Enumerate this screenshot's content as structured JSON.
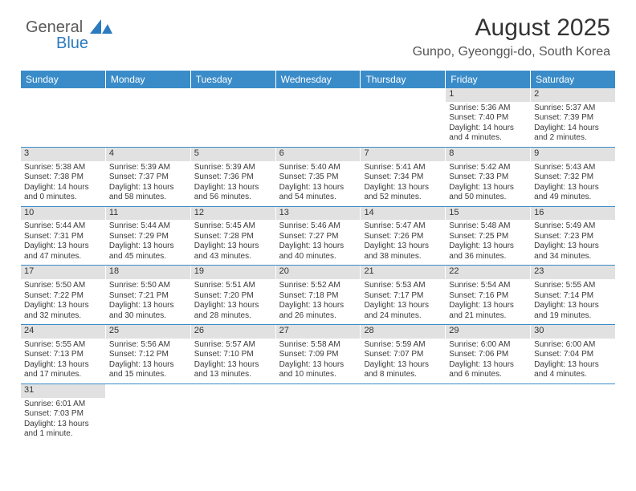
{
  "logo": {
    "word1": "General",
    "word2": "Blue"
  },
  "title": "August 2025",
  "location": "Gunpo, Gyeonggi-do, South Korea",
  "day_names": [
    "Sunday",
    "Monday",
    "Tuesday",
    "Wednesday",
    "Thursday",
    "Friday",
    "Saturday"
  ],
  "colors": {
    "header_bg": "#3a8cc9",
    "header_text": "#ffffff",
    "daynum_bg": "#e1e1e1",
    "week_border": "#3a8cc9",
    "logo_gray": "#5a5a5a",
    "logo_blue": "#2b7bbf"
  },
  "weeks": [
    [
      {
        "empty": true
      },
      {
        "empty": true
      },
      {
        "empty": true
      },
      {
        "empty": true
      },
      {
        "empty": true
      },
      {
        "n": "1",
        "sr": "Sunrise: 5:36 AM",
        "ss": "Sunset: 7:40 PM",
        "dl1": "Daylight: 14 hours",
        "dl2": "and 4 minutes."
      },
      {
        "n": "2",
        "sr": "Sunrise: 5:37 AM",
        "ss": "Sunset: 7:39 PM",
        "dl1": "Daylight: 14 hours",
        "dl2": "and 2 minutes."
      }
    ],
    [
      {
        "n": "3",
        "sr": "Sunrise: 5:38 AM",
        "ss": "Sunset: 7:38 PM",
        "dl1": "Daylight: 14 hours",
        "dl2": "and 0 minutes."
      },
      {
        "n": "4",
        "sr": "Sunrise: 5:39 AM",
        "ss": "Sunset: 7:37 PM",
        "dl1": "Daylight: 13 hours",
        "dl2": "and 58 minutes."
      },
      {
        "n": "5",
        "sr": "Sunrise: 5:39 AM",
        "ss": "Sunset: 7:36 PM",
        "dl1": "Daylight: 13 hours",
        "dl2": "and 56 minutes."
      },
      {
        "n": "6",
        "sr": "Sunrise: 5:40 AM",
        "ss": "Sunset: 7:35 PM",
        "dl1": "Daylight: 13 hours",
        "dl2": "and 54 minutes."
      },
      {
        "n": "7",
        "sr": "Sunrise: 5:41 AM",
        "ss": "Sunset: 7:34 PM",
        "dl1": "Daylight: 13 hours",
        "dl2": "and 52 minutes."
      },
      {
        "n": "8",
        "sr": "Sunrise: 5:42 AM",
        "ss": "Sunset: 7:33 PM",
        "dl1": "Daylight: 13 hours",
        "dl2": "and 50 minutes."
      },
      {
        "n": "9",
        "sr": "Sunrise: 5:43 AM",
        "ss": "Sunset: 7:32 PM",
        "dl1": "Daylight: 13 hours",
        "dl2": "and 49 minutes."
      }
    ],
    [
      {
        "n": "10",
        "sr": "Sunrise: 5:44 AM",
        "ss": "Sunset: 7:31 PM",
        "dl1": "Daylight: 13 hours",
        "dl2": "and 47 minutes."
      },
      {
        "n": "11",
        "sr": "Sunrise: 5:44 AM",
        "ss": "Sunset: 7:29 PM",
        "dl1": "Daylight: 13 hours",
        "dl2": "and 45 minutes."
      },
      {
        "n": "12",
        "sr": "Sunrise: 5:45 AM",
        "ss": "Sunset: 7:28 PM",
        "dl1": "Daylight: 13 hours",
        "dl2": "and 43 minutes."
      },
      {
        "n": "13",
        "sr": "Sunrise: 5:46 AM",
        "ss": "Sunset: 7:27 PM",
        "dl1": "Daylight: 13 hours",
        "dl2": "and 40 minutes."
      },
      {
        "n": "14",
        "sr": "Sunrise: 5:47 AM",
        "ss": "Sunset: 7:26 PM",
        "dl1": "Daylight: 13 hours",
        "dl2": "and 38 minutes."
      },
      {
        "n": "15",
        "sr": "Sunrise: 5:48 AM",
        "ss": "Sunset: 7:25 PM",
        "dl1": "Daylight: 13 hours",
        "dl2": "and 36 minutes."
      },
      {
        "n": "16",
        "sr": "Sunrise: 5:49 AM",
        "ss": "Sunset: 7:23 PM",
        "dl1": "Daylight: 13 hours",
        "dl2": "and 34 minutes."
      }
    ],
    [
      {
        "n": "17",
        "sr": "Sunrise: 5:50 AM",
        "ss": "Sunset: 7:22 PM",
        "dl1": "Daylight: 13 hours",
        "dl2": "and 32 minutes."
      },
      {
        "n": "18",
        "sr": "Sunrise: 5:50 AM",
        "ss": "Sunset: 7:21 PM",
        "dl1": "Daylight: 13 hours",
        "dl2": "and 30 minutes."
      },
      {
        "n": "19",
        "sr": "Sunrise: 5:51 AM",
        "ss": "Sunset: 7:20 PM",
        "dl1": "Daylight: 13 hours",
        "dl2": "and 28 minutes."
      },
      {
        "n": "20",
        "sr": "Sunrise: 5:52 AM",
        "ss": "Sunset: 7:18 PM",
        "dl1": "Daylight: 13 hours",
        "dl2": "and 26 minutes."
      },
      {
        "n": "21",
        "sr": "Sunrise: 5:53 AM",
        "ss": "Sunset: 7:17 PM",
        "dl1": "Daylight: 13 hours",
        "dl2": "and 24 minutes."
      },
      {
        "n": "22",
        "sr": "Sunrise: 5:54 AM",
        "ss": "Sunset: 7:16 PM",
        "dl1": "Daylight: 13 hours",
        "dl2": "and 21 minutes."
      },
      {
        "n": "23",
        "sr": "Sunrise: 5:55 AM",
        "ss": "Sunset: 7:14 PM",
        "dl1": "Daylight: 13 hours",
        "dl2": "and 19 minutes."
      }
    ],
    [
      {
        "n": "24",
        "sr": "Sunrise: 5:55 AM",
        "ss": "Sunset: 7:13 PM",
        "dl1": "Daylight: 13 hours",
        "dl2": "and 17 minutes."
      },
      {
        "n": "25",
        "sr": "Sunrise: 5:56 AM",
        "ss": "Sunset: 7:12 PM",
        "dl1": "Daylight: 13 hours",
        "dl2": "and 15 minutes."
      },
      {
        "n": "26",
        "sr": "Sunrise: 5:57 AM",
        "ss": "Sunset: 7:10 PM",
        "dl1": "Daylight: 13 hours",
        "dl2": "and 13 minutes."
      },
      {
        "n": "27",
        "sr": "Sunrise: 5:58 AM",
        "ss": "Sunset: 7:09 PM",
        "dl1": "Daylight: 13 hours",
        "dl2": "and 10 minutes."
      },
      {
        "n": "28",
        "sr": "Sunrise: 5:59 AM",
        "ss": "Sunset: 7:07 PM",
        "dl1": "Daylight: 13 hours",
        "dl2": "and 8 minutes."
      },
      {
        "n": "29",
        "sr": "Sunrise: 6:00 AM",
        "ss": "Sunset: 7:06 PM",
        "dl1": "Daylight: 13 hours",
        "dl2": "and 6 minutes."
      },
      {
        "n": "30",
        "sr": "Sunrise: 6:00 AM",
        "ss": "Sunset: 7:04 PM",
        "dl1": "Daylight: 13 hours",
        "dl2": "and 4 minutes."
      }
    ],
    [
      {
        "n": "31",
        "sr": "Sunrise: 6:01 AM",
        "ss": "Sunset: 7:03 PM",
        "dl1": "Daylight: 13 hours",
        "dl2": "and 1 minute."
      },
      {
        "empty": true
      },
      {
        "empty": true
      },
      {
        "empty": true
      },
      {
        "empty": true
      },
      {
        "empty": true
      },
      {
        "empty": true
      }
    ]
  ]
}
